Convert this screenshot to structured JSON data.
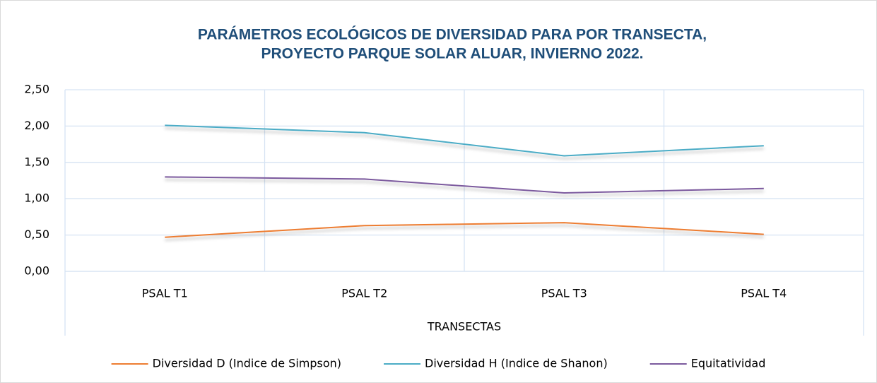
{
  "chart_data": {
    "type": "line",
    "title": [
      "PARÁMETROS ECOLÓGICOS DE DIVERSIDAD PARA POR TRANSECTA,",
      "PROYECTO PARQUE SOLAR ALUAR, INVIERNO 2022."
    ],
    "x_label": "TRANSECTAS",
    "categories": [
      "PSAL T1",
      "PSAL T2",
      "PSAL T3",
      "PSAL T4"
    ],
    "series": [
      {
        "name": "Diversidad D (Indice de Simpson)",
        "color": "#ed7d31",
        "values": [
          0.47,
          0.63,
          0.67,
          0.51
        ]
      },
      {
        "name": "Diversidad H (Indice de Shanon)",
        "color": "#4bacc6",
        "values": [
          2.01,
          1.91,
          1.59,
          1.73
        ]
      },
      {
        "name": "Equitatividad",
        "color": "#7b5a9e",
        "values": [
          1.3,
          1.27,
          1.08,
          1.14
        ]
      }
    ],
    "ylim": [
      0,
      2.5
    ],
    "yticks": [
      {
        "value": 0,
        "label": "0,00"
      },
      {
        "value": 0.5,
        "label": "0,50"
      },
      {
        "value": 1,
        "label": "1,00"
      },
      {
        "value": 1.5,
        "label": "1,50"
      },
      {
        "value": 2,
        "label": "2,00"
      },
      {
        "value": 2.5,
        "label": "2,50"
      }
    ],
    "grid": true,
    "legend": "bottom"
  }
}
